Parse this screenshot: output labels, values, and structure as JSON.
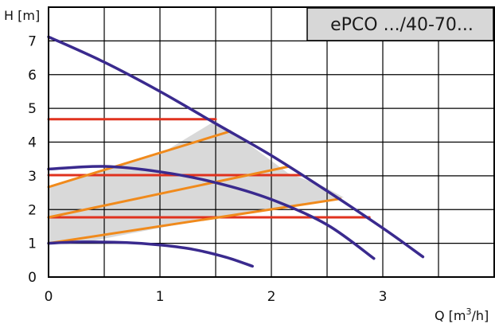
{
  "chart_data": {
    "type": "line",
    "title": "ePCO .../40-70...",
    "xlabel": "Q [m",
    "xlabel_sup": "3",
    "xlabel_end": "/h]",
    "ylabel": "H [m]",
    "xlim": [
      0,
      4
    ],
    "ylim": [
      0,
      8
    ],
    "x_ticks": [
      "0",
      "1",
      "2",
      "3"
    ],
    "x_tick_values": [
      0,
      1,
      2,
      3
    ],
    "y_ticks": [
      "0",
      "1",
      "2",
      "3",
      "4",
      "5",
      "6",
      "7"
    ],
    "y_tick_values": [
      0,
      1,
      2,
      3,
      4,
      5,
      6,
      7
    ],
    "grid": true,
    "operating_area": {
      "color": "#d9d9d9",
      "points": [
        [
          0,
          2.65
        ],
        [
          0,
          1.0
        ],
        [
          0.35,
          1.04
        ],
        [
          0.7,
          1.27
        ],
        [
          1.1,
          1.52
        ],
        [
          1.5,
          1.77
        ],
        [
          2.0,
          2.04
        ],
        [
          2.65,
          2.36
        ],
        [
          2.47,
          2.68
        ],
        [
          2.15,
          3.08
        ],
        [
          1.65,
          4.3
        ],
        [
          1.48,
          4.6
        ],
        [
          1.0,
          3.64
        ],
        [
          0.5,
          3.15
        ],
        [
          0,
          2.65
        ]
      ]
    },
    "series": [
      {
        "kind": "max_curve",
        "color": "#3a2a8e",
        "x": [
          0,
          0.5,
          1.0,
          1.5,
          2.0,
          2.5,
          3.0,
          3.36
        ],
        "y": [
          7.12,
          6.37,
          5.5,
          4.55,
          3.6,
          2.55,
          1.45,
          0.6
        ]
      },
      {
        "kind": "mid_curve",
        "color": "#3a2a8e",
        "x": [
          0,
          0.5,
          1.0,
          1.5,
          2.0,
          2.5,
          2.92
        ],
        "y": [
          3.2,
          3.28,
          3.12,
          2.8,
          2.3,
          1.55,
          0.55
        ]
      },
      {
        "kind": "min_curve",
        "color": "#3a2a8e",
        "x": [
          0,
          0.3,
          0.7,
          1.0,
          1.3,
          1.6,
          1.83
        ],
        "y": [
          1.0,
          1.04,
          1.02,
          0.95,
          0.82,
          0.58,
          0.32
        ]
      },
      {
        "kind": "constant_pressure",
        "color": "#e0321e",
        "x": [
          0,
          1.5
        ],
        "y": [
          4.68,
          4.68
        ]
      },
      {
        "kind": "constant_pressure",
        "color": "#e0321e",
        "x": [
          0,
          2.27
        ],
        "y": [
          3.02,
          3.02
        ]
      },
      {
        "kind": "constant_pressure",
        "color": "#e0321e",
        "x": [
          0,
          2.88
        ],
        "y": [
          1.77,
          1.77
        ]
      },
      {
        "kind": "proportional_pressure",
        "color": "#f08a1c",
        "x": [
          0,
          1.63
        ],
        "y": [
          2.67,
          4.32
        ]
      },
      {
        "kind": "proportional_pressure",
        "color": "#f08a1c",
        "x": [
          0,
          2.15
        ],
        "y": [
          1.77,
          3.27
        ]
      },
      {
        "kind": "proportional_pressure",
        "color": "#f08a1c",
        "x": [
          0,
          2.62
        ],
        "y": [
          1.0,
          2.32
        ]
      }
    ]
  }
}
